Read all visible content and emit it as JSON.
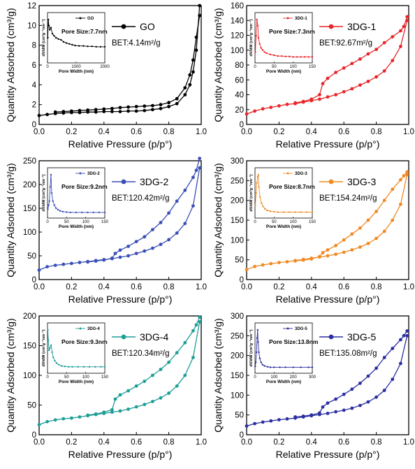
{
  "chart_data": [
    {
      "type": "line",
      "id": "GO",
      "color": "#000000",
      "xlabel": "Relative Pressure (p/p°)",
      "ylabel": "Quantity Adsorbed (cm³/g)",
      "xlim": [
        0.0,
        1.0
      ],
      "ylim": [
        0,
        12
      ],
      "xticks": [
        "0.0",
        "0.2",
        "0.4",
        "0.6",
        "0.8",
        "1.0"
      ],
      "yticks": [
        "0",
        "2",
        "4",
        "6",
        "8",
        "10",
        "12"
      ],
      "legend": "GO",
      "bet": "BET:4.14m²/g",
      "series": [
        {
          "name": "adsorption",
          "x": [
            0.0,
            0.05,
            0.1,
            0.15,
            0.2,
            0.25,
            0.3,
            0.35,
            0.4,
            0.45,
            0.5,
            0.55,
            0.6,
            0.65,
            0.7,
            0.75,
            0.8,
            0.85,
            0.9,
            0.93,
            0.95,
            0.97,
            0.99
          ],
          "y": [
            0.9,
            1.0,
            1.1,
            1.15,
            1.2,
            1.2,
            1.25,
            1.25,
            1.3,
            1.3,
            1.3,
            1.35,
            1.35,
            1.4,
            1.5,
            1.6,
            1.8,
            2.1,
            3.0,
            4.0,
            5.3,
            7.5,
            12.0
          ]
        },
        {
          "name": "desorption",
          "x": [
            0.99,
            0.97,
            0.95,
            0.93,
            0.9,
            0.85,
            0.8,
            0.75,
            0.7,
            0.65,
            0.6,
            0.55,
            0.5,
            0.45,
            0.4,
            0.35,
            0.3,
            0.25,
            0.2,
            0.15,
            0.1
          ],
          "y": [
            11.0,
            8.8,
            6.5,
            5.0,
            3.7,
            2.6,
            2.2,
            2.0,
            1.9,
            1.85,
            1.8,
            1.75,
            1.7,
            1.6,
            1.55,
            1.5,
            1.45,
            1.4,
            1.35,
            1.3,
            1.25
          ]
        }
      ],
      "inset": {
        "legend": "GO",
        "label": "Pore Size:7.7nm",
        "xlabel": "Pore Width (nm)",
        "ylabel": "dV/dW (cm³g⁻¹nm⁻¹)",
        "xlim": [
          0,
          2000
        ],
        "xticks": [
          "0",
          "1000",
          "2000"
        ],
        "x": [
          10,
          30,
          50,
          80,
          120,
          170,
          230,
          300,
          380,
          470,
          560,
          660,
          760,
          860,
          960,
          1100,
          1250,
          1400,
          1550,
          1700,
          1850,
          2000
        ],
        "y": [
          0.55,
          1.0,
          0.85,
          0.75,
          0.8,
          0.65,
          0.6,
          0.55,
          0.52,
          0.5,
          0.45,
          0.42,
          0.4,
          0.38,
          0.36,
          0.35,
          0.35,
          0.34,
          0.34,
          0.33,
          0.33,
          0.33
        ]
      }
    },
    {
      "type": "line",
      "id": "3DG-1",
      "color": "#e8262a",
      "xlabel": "Relative Pressure (p/p°)",
      "ylabel": "Quantity Adsorbed (cm³/g)",
      "xlim": [
        0.0,
        1.0
      ],
      "ylim": [
        0,
        160
      ],
      "xticks": [
        "0.0",
        "0.2",
        "0.4",
        "0.6",
        "0.8",
        "1.0"
      ],
      "yticks": [
        "0",
        "20",
        "40",
        "60",
        "80",
        "100",
        "120",
        "140",
        "160"
      ],
      "legend": "3DG-1",
      "bet": "BET:92.67m²/g",
      "series": [
        {
          "name": "adsorption",
          "x": [
            0.0,
            0.05,
            0.1,
            0.15,
            0.2,
            0.25,
            0.3,
            0.35,
            0.4,
            0.45,
            0.5,
            0.55,
            0.6,
            0.65,
            0.7,
            0.75,
            0.8,
            0.85,
            0.9,
            0.95,
            0.99
          ],
          "y": [
            14,
            18,
            21,
            23,
            25,
            27,
            28,
            30,
            32,
            34,
            37,
            40,
            44,
            48,
            53,
            58,
            64,
            72,
            86,
            105,
            140
          ]
        },
        {
          "name": "desorption",
          "x": [
            0.99,
            0.97,
            0.95,
            0.9,
            0.85,
            0.8,
            0.75,
            0.7,
            0.65,
            0.6,
            0.55,
            0.5,
            0.47,
            0.45,
            0.4,
            0.35,
            0.3
          ],
          "y": [
            145,
            132,
            126,
            118,
            110,
            101,
            95,
            88,
            82,
            76,
            70,
            62,
            55,
            40,
            34,
            31,
            29
          ]
        }
      ],
      "inset": {
        "legend": "3DG-1",
        "label": "Pore Size:7.3nm",
        "xlabel": "Pore Width (nm)",
        "ylabel": "dV/dW (cm³g⁻¹nm⁻¹)",
        "xlim": [
          0,
          150
        ],
        "xticks": [
          "0",
          "50",
          "100",
          "150"
        ],
        "x": [
          1,
          3,
          5,
          7.3,
          9,
          12,
          16,
          20,
          25,
          30,
          40,
          50,
          60,
          70,
          80,
          90,
          100,
          110,
          120,
          130,
          140,
          150
        ],
        "y": [
          0.2,
          0.6,
          1.0,
          0.85,
          0.55,
          0.4,
          0.3,
          0.25,
          0.2,
          0.17,
          0.14,
          0.12,
          0.1,
          0.1,
          0.09,
          0.09,
          0.08,
          0.08,
          0.08,
          0.08,
          0.08,
          0.08
        ]
      }
    },
    {
      "type": "line",
      "id": "3DG-2",
      "color": "#3a4fb6",
      "xlabel": "Relative Pressure (p/p°)",
      "ylabel": "Quantity Adsorbed (cm³/g)",
      "xlim": [
        0.0,
        1.0
      ],
      "ylim": [
        0,
        250
      ],
      "xticks": [
        "0.0",
        "0.2",
        "0.4",
        "0.6",
        "0.8",
        "1.0"
      ],
      "yticks": [
        "0",
        "50",
        "100",
        "150",
        "200",
        "250"
      ],
      "legend": "3DG-2",
      "bet": "BET:120.42m²/g",
      "series": [
        {
          "name": "adsorption",
          "x": [
            0.0,
            0.05,
            0.1,
            0.15,
            0.2,
            0.25,
            0.3,
            0.35,
            0.4,
            0.45,
            0.5,
            0.55,
            0.6,
            0.65,
            0.7,
            0.75,
            0.8,
            0.85,
            0.9,
            0.95,
            0.99
          ],
          "y": [
            20,
            27,
            30,
            32,
            34,
            36,
            38,
            40,
            42,
            44,
            47,
            50,
            55,
            60,
            66,
            74,
            84,
            98,
            118,
            155,
            235
          ]
        },
        {
          "name": "desorption",
          "x": [
            0.99,
            0.97,
            0.95,
            0.9,
            0.85,
            0.8,
            0.75,
            0.7,
            0.65,
            0.6,
            0.55,
            0.5,
            0.47,
            0.45,
            0.4,
            0.35,
            0.3
          ],
          "y": [
            255,
            230,
            215,
            188,
            165,
            140,
            120,
            105,
            90,
            80,
            70,
            62,
            55,
            45,
            41,
            39,
            37
          ]
        }
      ],
      "inset": {
        "legend": "3DG-2",
        "label": "Pore Size:9.2nm",
        "xlabel": "Pore Width (nm)",
        "ylabel": "dV/dW (cm³g⁻¹nm⁻¹)",
        "xlim": [
          0,
          150
        ],
        "xticks": [
          "0",
          "50",
          "100",
          "150"
        ],
        "x": [
          1,
          3,
          5,
          7,
          9.2,
          11,
          14,
          18,
          22,
          27,
          33,
          40,
          50,
          60,
          75,
          90,
          105,
          120,
          135,
          150
        ],
        "y": [
          0.15,
          0.25,
          0.35,
          0.7,
          1.0,
          0.55,
          0.35,
          0.25,
          0.18,
          0.14,
          0.11,
          0.09,
          0.08,
          0.07,
          0.07,
          0.07,
          0.07,
          0.07,
          0.07,
          0.07
        ]
      }
    },
    {
      "type": "line",
      "id": "3DG-3",
      "color": "#f08a24",
      "xlabel": "Relative Pressure (p/p°)",
      "ylabel": "Quantity Adsorbed (cm³/g)",
      "xlim": [
        0.0,
        1.0
      ],
      "ylim": [
        0,
        300
      ],
      "xticks": [
        "0.0",
        "0.2",
        "0.4",
        "0.6",
        "0.8",
        "1.0"
      ],
      "yticks": [
        "0",
        "50",
        "100",
        "150",
        "200",
        "250",
        "300"
      ],
      "legend": "3DG-3",
      "bet": "BET:154.24m²/g",
      "series": [
        {
          "name": "adsorption",
          "x": [
            0.0,
            0.05,
            0.1,
            0.15,
            0.2,
            0.25,
            0.3,
            0.35,
            0.4,
            0.45,
            0.5,
            0.55,
            0.6,
            0.65,
            0.7,
            0.75,
            0.8,
            0.85,
            0.9,
            0.95,
            0.99
          ],
          "y": [
            25,
            33,
            37,
            40,
            43,
            45,
            48,
            51,
            54,
            57,
            60,
            64,
            69,
            75,
            82,
            91,
            104,
            122,
            150,
            190,
            265
          ]
        },
        {
          "name": "desorption",
          "x": [
            0.99,
            0.97,
            0.95,
            0.9,
            0.85,
            0.8,
            0.75,
            0.7,
            0.65,
            0.6,
            0.55,
            0.5,
            0.47,
            0.45,
            0.4,
            0.35,
            0.3
          ],
          "y": [
            272,
            262,
            252,
            228,
            200,
            172,
            150,
            130,
            115,
            100,
            86,
            75,
            68,
            58,
            52,
            49,
            47
          ]
        }
      ],
      "inset": {
        "legend": "3DG-3",
        "label": "Pore Size:8.7nm",
        "xlabel": "Pore Width (nm)",
        "ylabel": "dV/dW (cm³g⁻¹nm⁻¹)",
        "xlim": [
          0,
          150
        ],
        "xticks": [
          "0",
          "50",
          "100",
          "150"
        ],
        "x": [
          1,
          3,
          5,
          7,
          8.7,
          10,
          13,
          17,
          21,
          26,
          32,
          40,
          50,
          60,
          75,
          90,
          105,
          120,
          135,
          150
        ],
        "y": [
          0.25,
          0.55,
          0.8,
          0.95,
          1.0,
          0.7,
          0.45,
          0.3,
          0.22,
          0.16,
          0.12,
          0.1,
          0.09,
          0.08,
          0.08,
          0.08,
          0.08,
          0.08,
          0.08,
          0.08
        ]
      }
    },
    {
      "type": "line",
      "id": "3DG-4",
      "color": "#1d9e96",
      "xlabel": "Relative Pressure (p/p°)",
      "ylabel": "Quantity Adsorbed (cm³/g)",
      "xlim": [
        0.0,
        1.0
      ],
      "ylim": [
        0,
        200
      ],
      "xticks": [
        "0.0",
        "0.2",
        "0.4",
        "0.6",
        "0.8",
        "1.0"
      ],
      "yticks": [
        "0",
        "50",
        "100",
        "150",
        "200"
      ],
      "legend": "3DG-4",
      "bet": "BET:120.34m²/g",
      "series": [
        {
          "name": "adsorption",
          "x": [
            0.0,
            0.05,
            0.1,
            0.15,
            0.2,
            0.25,
            0.3,
            0.35,
            0.4,
            0.45,
            0.5,
            0.55,
            0.6,
            0.65,
            0.7,
            0.75,
            0.8,
            0.85,
            0.9,
            0.95,
            0.99
          ],
          "y": [
            17,
            22,
            25,
            27,
            28,
            30,
            32,
            34,
            36,
            38,
            40,
            43,
            47,
            51,
            56,
            62,
            70,
            82,
            100,
            130,
            190
          ]
        },
        {
          "name": "desorption",
          "x": [
            0.99,
            0.97,
            0.95,
            0.9,
            0.85,
            0.8,
            0.75,
            0.7,
            0.65,
            0.6,
            0.55,
            0.5,
            0.47,
            0.45,
            0.4,
            0.35,
            0.3
          ],
          "y": [
            198,
            185,
            175,
            155,
            138,
            122,
            110,
            100,
            90,
            82,
            74,
            67,
            60,
            42,
            38,
            35,
            33
          ]
        }
      ],
      "inset": {
        "legend": "3DG-4",
        "label": "Pore Size:9.3nm",
        "xlabel": "Pore Width (nm)",
        "ylabel": "dV/dW (cm³g⁻¹nm⁻¹)",
        "xlim": [
          0,
          150
        ],
        "xticks": [
          "0",
          "50",
          "100",
          "150"
        ],
        "x": [
          1,
          2,
          4,
          6,
          9.3,
          12,
          15,
          19,
          24,
          30,
          37,
          45,
          55,
          65,
          80,
          95,
          110,
          125,
          140,
          150
        ],
        "y": [
          1.0,
          0.75,
          0.5,
          0.55,
          0.62,
          0.45,
          0.32,
          0.24,
          0.18,
          0.14,
          0.11,
          0.1,
          0.09,
          0.09,
          0.09,
          0.09,
          0.09,
          0.09,
          0.09,
          0.09
        ]
      }
    },
    {
      "type": "line",
      "id": "3DG-5",
      "color": "#2b2fa0",
      "xlabel": "Relative Pressure (p/p°)",
      "ylabel": "Quantity Adsorbed (cm³/g)",
      "xlim": [
        0.0,
        1.0
      ],
      "ylim": [
        0,
        300
      ],
      "xticks": [
        "0.0",
        "0.2",
        "0.4",
        "0.6",
        "0.8",
        "1.0"
      ],
      "yticks": [
        "0",
        "50",
        "100",
        "150",
        "200",
        "250",
        "300"
      ],
      "legend": "3DG-5",
      "bet": "BET:135.08m²/g",
      "series": [
        {
          "name": "adsorption",
          "x": [
            0.0,
            0.05,
            0.1,
            0.15,
            0.2,
            0.25,
            0.3,
            0.35,
            0.4,
            0.45,
            0.5,
            0.55,
            0.6,
            0.65,
            0.7,
            0.75,
            0.8,
            0.85,
            0.9,
            0.95,
            0.99
          ],
          "y": [
            22,
            28,
            32,
            35,
            38,
            40,
            42,
            45,
            48,
            51,
            54,
            58,
            62,
            67,
            74,
            83,
            95,
            112,
            140,
            180,
            250
          ]
        },
        {
          "name": "desorption",
          "x": [
            0.99,
            0.97,
            0.95,
            0.9,
            0.85,
            0.8,
            0.75,
            0.7,
            0.65,
            0.6,
            0.55,
            0.5,
            0.47,
            0.45,
            0.4,
            0.35,
            0.3
          ],
          "y": [
            262,
            250,
            240,
            218,
            195,
            168,
            148,
            130,
            115,
            102,
            90,
            80,
            70,
            55,
            50,
            47,
            45
          ]
        }
      ],
      "inset": {
        "legend": "3DG-5",
        "label": "Pore Size:13.8nm",
        "xlabel": "Pore Width (nm)",
        "ylabel": "dV/dW (cm³g⁻¹nm⁻¹)",
        "xlim": [
          0,
          300
        ],
        "xticks": [
          "0",
          "100",
          "200",
          "300"
        ],
        "x": [
          1,
          4,
          8,
          11,
          13.8,
          16,
          20,
          25,
          32,
          40,
          50,
          65,
          80,
          100,
          130,
          160,
          200,
          240,
          280,
          300
        ],
        "y": [
          0.1,
          0.2,
          0.45,
          0.8,
          1.0,
          0.7,
          0.45,
          0.3,
          0.2,
          0.14,
          0.11,
          0.09,
          0.08,
          0.08,
          0.08,
          0.08,
          0.08,
          0.08,
          0.08,
          0.08
        ]
      }
    }
  ]
}
